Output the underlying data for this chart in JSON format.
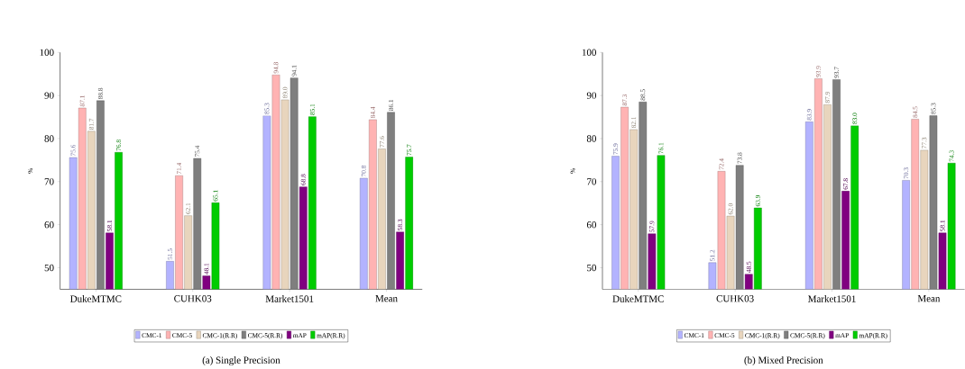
{
  "chart_data": [
    {
      "type": "bar",
      "title": "(a) Single Precision",
      "ylabel": "%",
      "categories": [
        "DukeMTMC",
        "CUHK03",
        "Market1501",
        "Mean"
      ],
      "ylim": [
        45,
        100
      ],
      "yticks": [
        50,
        60,
        70,
        80,
        90,
        100
      ],
      "legend": "bottom",
      "series": [
        {
          "name": "CMC-1",
          "color": "#b3b3ff",
          "values": [
            75.6,
            51.5,
            85.3,
            70.8
          ],
          "value_labels": [
            "75.6",
            "51.5",
            "85.3",
            "70.8"
          ]
        },
        {
          "name": "CMC-5",
          "color": "#ffb3b3",
          "values": [
            87.1,
            71.4,
            94.8,
            84.4
          ],
          "value_labels": [
            "87.1",
            "71.4",
            "94.8",
            "84.4"
          ]
        },
        {
          "name": "CMC-1(R.R)",
          "color": "#e8d5bd",
          "values": [
            81.7,
            62.1,
            89.0,
            77.6
          ],
          "value_labels": [
            "81.7",
            "62.1",
            "89.0",
            "77.6"
          ]
        },
        {
          "name": "CMC-5(R.R)",
          "color": "#7f7f7f",
          "values": [
            88.8,
            75.4,
            94.1,
            86.1
          ],
          "value_labels": [
            "88.8",
            "75.4",
            "94.1",
            "86.1"
          ]
        },
        {
          "name": "mAP",
          "color": "#800080",
          "values": [
            58.1,
            48.1,
            68.8,
            58.3
          ],
          "value_labels": [
            "58.1",
            "48.1",
            "68.8",
            "58.3"
          ]
        },
        {
          "name": "mAP(R.R)",
          "color": "#00cc00",
          "values": [
            76.8,
            65.1,
            85.1,
            75.7
          ],
          "value_labels": [
            "76.8",
            "65.1",
            "85.1",
            "75.7"
          ]
        }
      ]
    },
    {
      "type": "bar",
      "title": "(b) Mixed Precision",
      "ylabel": "%",
      "categories": [
        "DukeMTMC",
        "CUHK03",
        "Market1501",
        "Mean"
      ],
      "ylim": [
        45,
        100
      ],
      "yticks": [
        50,
        60,
        70,
        80,
        90,
        100
      ],
      "legend": "bottom",
      "series": [
        {
          "name": "CMC-1",
          "color": "#b3b3ff",
          "values": [
            75.9,
            51.2,
            83.9,
            70.3
          ],
          "value_labels": [
            "75.9",
            "51.2",
            "83.9",
            "70.3"
          ]
        },
        {
          "name": "CMC-5",
          "color": "#ffb3b3",
          "values": [
            87.3,
            72.4,
            93.9,
            84.5
          ],
          "value_labels": [
            "87.3",
            "72.4",
            "93.9",
            "84.5"
          ]
        },
        {
          "name": "CMC-1(R.R)",
          "color": "#e8d5bd",
          "values": [
            82.1,
            62.0,
            87.9,
            77.3
          ],
          "value_labels": [
            "82.1",
            "62.0",
            "87.9",
            "77.3"
          ]
        },
        {
          "name": "CMC-5(R.R)",
          "color": "#7f7f7f",
          "values": [
            88.5,
            73.8,
            93.7,
            85.3
          ],
          "value_labels": [
            "88.5",
            "73.8",
            "93.7",
            "85.3"
          ]
        },
        {
          "name": "mAP",
          "color": "#800080",
          "values": [
            57.9,
            48.5,
            67.8,
            58.1
          ],
          "value_labels": [
            "57.9",
            "48.5",
            "67.8",
            "58.1"
          ]
        },
        {
          "name": "mAP(R.R)",
          "color": "#00cc00",
          "values": [
            76.1,
            63.9,
            83.0,
            74.3
          ],
          "value_labels": [
            "76.1",
            "63.9",
            "83.0",
            "74.3"
          ]
        }
      ]
    }
  ]
}
